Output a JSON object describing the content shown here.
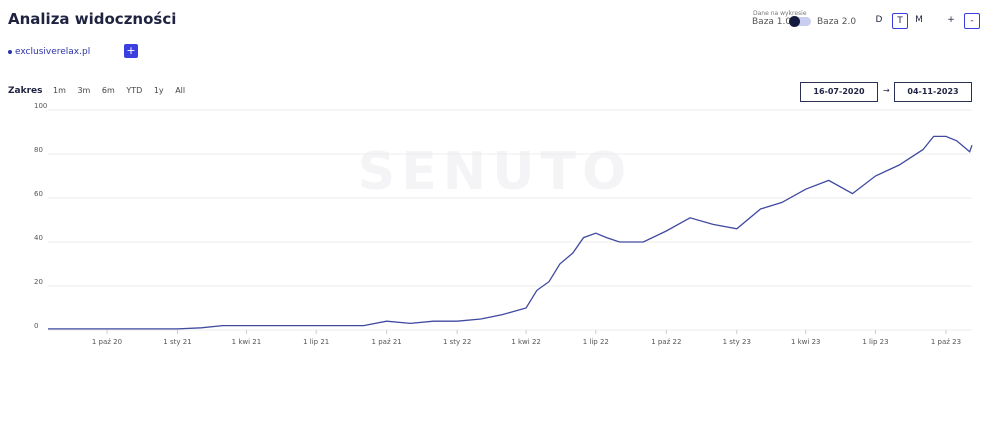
{
  "header": {
    "title": "Analiza widoczności",
    "data_caption": "Dane na wykresie",
    "base_1": "Baza 1.0",
    "base_2": "Baza 2.0",
    "granularity": [
      "D",
      "T",
      "M"
    ],
    "zoom_in": "+",
    "zoom_out": "-"
  },
  "domains": {
    "items": [
      "exclusiverelax.pl"
    ],
    "add": "+"
  },
  "range": {
    "label": "Zakres",
    "options": [
      "1m",
      "3m",
      "6m",
      "YTD",
      "1y",
      "All"
    ],
    "from": "16-07-2020",
    "arrow": "→",
    "to": "04-11-2023"
  },
  "watermark": "SENUTO",
  "chart_data": {
    "type": "line",
    "x": [
      "2020-07-16",
      "2020-08-01",
      "2020-09-01",
      "2020-10-01",
      "2020-11-01",
      "2020-12-01",
      "2021-01-01",
      "2021-02-01",
      "2021-03-01",
      "2021-04-01",
      "2021-05-01",
      "2021-06-01",
      "2021-07-01",
      "2021-08-01",
      "2021-09-01",
      "2021-10-01",
      "2021-11-01",
      "2021-12-01",
      "2022-01-01",
      "2022-02-01",
      "2022-03-01",
      "2022-04-01",
      "2022-04-15",
      "2022-05-01",
      "2022-05-15",
      "2022-06-01",
      "2022-06-15",
      "2022-07-01",
      "2022-07-15",
      "2022-08-01",
      "2022-09-01",
      "2022-10-01",
      "2022-11-01",
      "2022-12-01",
      "2023-01-01",
      "2023-02-01",
      "2023-03-01",
      "2023-04-01",
      "2023-05-01",
      "2023-06-01",
      "2023-07-01",
      "2023-08-01",
      "2023-09-01",
      "2023-09-15",
      "2023-10-01",
      "2023-10-15",
      "2023-11-01",
      "2023-11-04"
    ],
    "series": [
      {
        "name": "exclusiverelax.pl",
        "color": "#3f4aa0",
        "values": [
          0.5,
          0.5,
          0.5,
          0.5,
          0.5,
          0.5,
          0.5,
          1,
          2,
          2,
          2,
          2,
          2,
          2,
          2,
          4,
          3,
          4,
          4,
          5,
          7,
          10,
          18,
          22,
          30,
          35,
          42,
          44,
          42,
          40,
          40,
          45,
          51,
          48,
          46,
          55,
          58,
          64,
          68,
          62,
          70,
          75,
          82,
          88,
          88,
          86,
          81,
          84
        ]
      }
    ],
    "xlim": [
      "2020-07-16",
      "2023-11-04"
    ],
    "xticks": [
      {
        "value": "2020-10-01",
        "label": "1 paź 20"
      },
      {
        "value": "2021-01-01",
        "label": "1 sty 21"
      },
      {
        "value": "2021-04-01",
        "label": "1 kwi 21"
      },
      {
        "value": "2021-07-01",
        "label": "1 lip 21"
      },
      {
        "value": "2021-10-01",
        "label": "1 paź 21"
      },
      {
        "value": "2022-01-01",
        "label": "1 sty 22"
      },
      {
        "value": "2022-04-01",
        "label": "1 kwi 22"
      },
      {
        "value": "2022-07-01",
        "label": "1 lip 22"
      },
      {
        "value": "2022-10-01",
        "label": "1 paź 22"
      },
      {
        "value": "2023-01-01",
        "label": "1 sty 23"
      },
      {
        "value": "2023-04-01",
        "label": "1 kwi 23"
      },
      {
        "value": "2023-07-01",
        "label": "1 lip 23"
      },
      {
        "value": "2023-10-01",
        "label": "1 paź 23"
      }
    ],
    "ylim": [
      0,
      100
    ],
    "yticks": [
      0,
      20,
      40,
      60,
      80,
      100
    ],
    "grid": true
  }
}
